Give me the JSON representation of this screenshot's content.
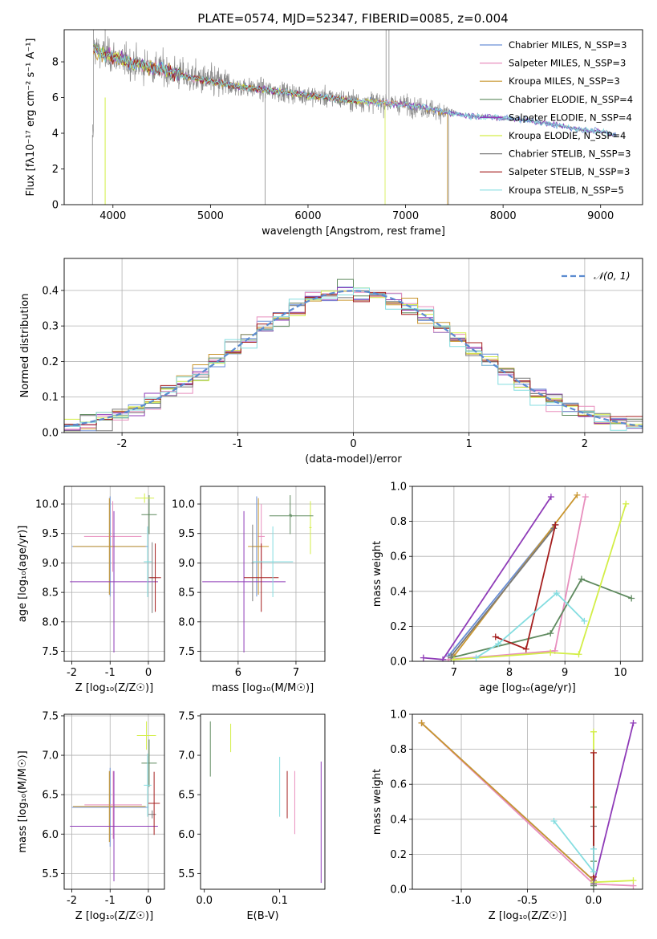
{
  "figure_title": "PLATE=0574, MJD=52347, FIBERID=0085, z=0.004",
  "series_colors": [
    "#6a8fd6",
    "#e88fbe",
    "#c9962f",
    "#5f8a5f",
    "#8f3cb8",
    "#d3ee47",
    "#7a7a7a",
    "#a51f1f",
    "#84dde0"
  ],
  "chart_data": [
    {
      "id": "spectrum",
      "type": "line",
      "xlabel": "wavelength [Angstrom, rest frame]",
      "ylabel": "Flux [fλ10⁻¹⁷ erg cm⁻² s⁻¹ A⁻¹]",
      "xlim": [
        3500,
        9430
      ],
      "ylim": [
        0,
        9.8
      ],
      "xticks": [
        4000,
        5000,
        6000,
        7000,
        8000,
        9000
      ],
      "yticks": [
        0,
        2,
        4,
        6,
        8
      ],
      "grid": false,
      "legend_position": "top-right",
      "legend": [
        "Chabrier MILES, N_SSP=3",
        "Salpeter MILES, N_SSP=3",
        "Kroupa MILES, N_SSP=3",
        "Chabrier ELODIE, N_SSP=4",
        "Salpeter ELODIE, N_SSP=4",
        "Kroupa ELODIE, N_SSP=4",
        "Chabrier STELIB, N_SSP=3",
        "Salpeter STELIB, N_SSP=3",
        "Kroupa STELIB, N_SSP=5"
      ],
      "continuum": {
        "x": [
          3800,
          3900,
          4000,
          4200,
          4500,
          4800,
          5000,
          5300,
          5600,
          5900,
          6200,
          6500,
          6800,
          7000,
          7300,
          7600,
          7900,
          8200,
          8500,
          8800,
          9000,
          9160
        ],
        "y": [
          8.8,
          8.4,
          8.3,
          7.9,
          7.6,
          7.1,
          6.9,
          6.6,
          6.4,
          6.2,
          6.0,
          5.8,
          5.7,
          5.6,
          5.3,
          5.0,
          4.9,
          4.75,
          4.5,
          4.2,
          4.1,
          3.9
        ]
      }
    },
    {
      "id": "residuals",
      "type": "histogram",
      "xlabel": "(data-model)/error",
      "ylabel": "Normed distribution",
      "xlim": [
        -2.5,
        2.5
      ],
      "ylim": [
        0,
        0.49
      ],
      "xticks": [
        -2,
        -1,
        0,
        1,
        2
      ],
      "yticks": [
        0.0,
        0.1,
        0.2,
        0.3,
        0.4
      ],
      "grid": true,
      "legend_position": "top-right",
      "reference_label": "𝒩(0, 1)",
      "bins": 36
    },
    {
      "id": "age_vs_Z",
      "type": "scatter",
      "xlabel": "Z [log₁₀(Z/Z☉)]",
      "ylabel": "age  [log₁₀(age/yr)]",
      "xlim": [
        -2.2,
        0.42
      ],
      "ylim": [
        7.33,
        10.3
      ],
      "xticks": [
        -2,
        -1,
        0
      ],
      "yticks": [
        7.5,
        8.0,
        8.5,
        9.0,
        9.5,
        10.0
      ],
      "grid": true,
      "points": [
        {
          "x": -1.0,
          "y": 9.28,
          "xerr": 1.0,
          "yerr": 0.85,
          "c": 0
        },
        {
          "x": -0.93,
          "y": 9.45,
          "xerr": 0.75,
          "yerr": 0.6,
          "c": 1
        },
        {
          "x": -1.02,
          "y": 9.28,
          "xerr": 0.95,
          "yerr": 0.82,
          "c": 2
        },
        {
          "x": 0.02,
          "y": 9.82,
          "xerr": 0.2,
          "yerr": 0.33,
          "c": 3
        },
        {
          "x": -0.9,
          "y": 8.68,
          "xerr": 1.15,
          "yerr": 1.2,
          "c": 4
        },
        {
          "x": -0.1,
          "y": 10.1,
          "xerr": 0.25,
          "yerr": 0.08,
          "c": 5
        },
        {
          "x": 0.1,
          "y": 8.75,
          "xerr": 0.1,
          "yerr": 0.6,
          "c": 6
        },
        {
          "x": 0.18,
          "y": 8.75,
          "xerr": 0.15,
          "yerr": 0.58,
          "c": 7
        },
        {
          "x": -0.02,
          "y": 9.02,
          "xerr": 0.1,
          "yerr": 0.6,
          "c": 8
        }
      ]
    },
    {
      "id": "age_vs_mass",
      "type": "scatter",
      "xlabel": "mass [log₁₀(M/M☉)]",
      "ylabel": "",
      "xlim": [
        5.35,
        7.5
      ],
      "ylim": [
        7.33,
        10.3
      ],
      "xticks": [
        6,
        7
      ],
      "yticks": [
        7.5,
        8.0,
        8.5,
        9.0,
        9.5,
        10.0
      ],
      "grid": true,
      "points": [
        {
          "x": 6.32,
          "y": 9.28,
          "xerr": 0.08,
          "yerr": 0.85,
          "c": 0
        },
        {
          "x": 6.4,
          "y": 9.45,
          "xerr": 0.06,
          "yerr": 0.55,
          "c": 1
        },
        {
          "x": 6.35,
          "y": 9.28,
          "xerr": 0.18,
          "yerr": 0.82,
          "c": 2
        },
        {
          "x": 6.9,
          "y": 9.82,
          "xerr": 0.02,
          "yerr": 0.33,
          "c": 3
        },
        {
          "x": 6.1,
          "y": 8.68,
          "xerr": 0.72,
          "yerr": 1.2,
          "c": 4
        },
        {
          "x": 7.25,
          "y": 9.6,
          "xerr": 0.02,
          "yerr": 0.45,
          "c": 5
        },
        {
          "x": 6.25,
          "y": 9.0,
          "xerr": 0.02,
          "yerr": 0.65,
          "c": 6
        },
        {
          "x": 6.4,
          "y": 8.75,
          "xerr": 0.3,
          "yerr": 0.58,
          "c": 7
        },
        {
          "x": 6.6,
          "y": 9.02,
          "xerr": 0.35,
          "yerr": 0.6,
          "c": 8
        },
        {
          "x": 6.92,
          "y": 9.8,
          "xerr": 0.38,
          "yerr": 0.02,
          "c": 3
        }
      ]
    },
    {
      "id": "weight_vs_age",
      "type": "line",
      "xlabel": "age  [log₁₀(age/yr)]",
      "ylabel": "mass weight",
      "xlim": [
        6.25,
        10.4
      ],
      "ylim": [
        0,
        1.0
      ],
      "xticks": [
        7,
        8,
        9,
        10
      ],
      "yticks": [
        0.0,
        0.2,
        0.4,
        0.6,
        0.8,
        1.0
      ],
      "grid": true,
      "series": [
        {
          "c": 0,
          "x": [
            6.9,
            8.82
          ],
          "y": [
            0.03,
            0.78
          ]
        },
        {
          "c": 1,
          "x": [
            6.9,
            8.82,
            9.37
          ],
          "y": [
            0.01,
            0.06,
            0.94
          ]
        },
        {
          "c": 2,
          "x": [
            7.0,
            9.22
          ],
          "y": [
            0.03,
            0.95
          ]
        },
        {
          "c": 3,
          "x": [
            6.95,
            8.74,
            9.3,
            10.2
          ],
          "y": [
            0.02,
            0.16,
            0.47,
            0.36
          ]
        },
        {
          "c": 4,
          "x": [
            6.45,
            6.8,
            8.75
          ],
          "y": [
            0.02,
            0.01,
            0.94
          ]
        },
        {
          "c": 5,
          "x": [
            7.0,
            8.74,
            9.25,
            10.1
          ],
          "y": [
            0.01,
            0.05,
            0.04,
            0.9
          ]
        },
        {
          "c": 6,
          "x": [
            6.95,
            8.8
          ],
          "y": [
            0.03,
            0.76
          ]
        },
        {
          "c": 7,
          "x": [
            7.75,
            8.3,
            8.83
          ],
          "y": [
            0.14,
            0.07,
            0.78
          ]
        },
        {
          "c": 8,
          "x": [
            7.4,
            7.8,
            8.85,
            9.35
          ],
          "y": [
            0.02,
            0.1,
            0.39,
            0.23
          ]
        }
      ]
    },
    {
      "id": "mass_vs_Z",
      "type": "scatter",
      "xlabel": "Z [log₁₀(Z/Z☉)]",
      "ylabel": "mass [log₁₀(M/M☉)]",
      "xlim": [
        -2.2,
        0.42
      ],
      "ylim": [
        5.3,
        7.52
      ],
      "xticks": [
        -2,
        -1,
        0
      ],
      "yticks": [
        5.5,
        6.0,
        6.5,
        7.0,
        7.5
      ],
      "grid": true,
      "points": [
        {
          "x": -1.0,
          "y": 6.34,
          "xerr": 1.0,
          "yerr": 0.5,
          "c": 0
        },
        {
          "x": -0.92,
          "y": 6.37,
          "xerr": 0.75,
          "yerr": 0.43,
          "c": 1
        },
        {
          "x": -1.02,
          "y": 6.35,
          "xerr": 0.95,
          "yerr": 0.45,
          "c": 2
        },
        {
          "x": 0.02,
          "y": 6.9,
          "xerr": 0.2,
          "yerr": 0.3,
          "c": 3
        },
        {
          "x": -0.9,
          "y": 6.1,
          "xerr": 1.15,
          "yerr": 0.7,
          "c": 4
        },
        {
          "x": -0.05,
          "y": 7.25,
          "xerr": 0.25,
          "yerr": 0.18,
          "c": 5
        },
        {
          "x": 0.1,
          "y": 6.25,
          "xerr": 0.1,
          "yerr": 0.05,
          "c": 6
        },
        {
          "x": 0.15,
          "y": 6.39,
          "xerr": 0.15,
          "yerr": 0.4,
          "c": 7
        },
        {
          "x": -0.02,
          "y": 6.62,
          "xerr": 0.1,
          "yerr": 0.4,
          "c": 8
        }
      ]
    },
    {
      "id": "mass_vs_ebv",
      "type": "scatter",
      "xlabel": "E(B-V)",
      "ylabel": "",
      "xlim": [
        -0.005,
        0.16
      ],
      "ylim": [
        5.3,
        7.52
      ],
      "xticks": [
        0.0,
        0.1
      ],
      "yticks": [
        5.5,
        6.0,
        6.5,
        7.0,
        7.5
      ],
      "grid": false,
      "points": [
        {
          "x": 0.008,
          "y": 7.08,
          "xerr": 0,
          "yerr": 0.35,
          "c": 3
        },
        {
          "x": 0.035,
          "y": 7.22,
          "xerr": 0,
          "yerr": 0.18,
          "c": 5
        },
        {
          "x": 0.1,
          "y": 6.6,
          "xerr": 0,
          "yerr": 0.38,
          "c": 8
        },
        {
          "x": 0.11,
          "y": 6.5,
          "xerr": 0,
          "yerr": 0.3,
          "c": 7
        },
        {
          "x": 0.12,
          "y": 6.4,
          "xerr": 0,
          "yerr": 0.4,
          "c": 1
        },
        {
          "x": 0.155,
          "y": 6.15,
          "xerr": 0,
          "yerr": 0.77,
          "c": 4
        }
      ]
    },
    {
      "id": "weight_vs_Z",
      "type": "line",
      "xlabel": "Z [log₁₀(Z/Z☉)]",
      "ylabel": "mass weight",
      "xlim": [
        -1.37,
        0.37
      ],
      "ylim": [
        0,
        1.0
      ],
      "xticks": [
        -1.0,
        -0.5,
        0.0
      ],
      "yticks": [
        0.0,
        0.2,
        0.4,
        0.6,
        0.8,
        1.0
      ],
      "grid": true,
      "series": [
        {
          "c": 0,
          "x": [
            -1.3,
            0.0
          ],
          "y": [
            0.95,
            0.05
          ]
        },
        {
          "c": 1,
          "x": [
            -1.3,
            0.0,
            0.3
          ],
          "y": [
            0.95,
            0.03,
            0.02
          ]
        },
        {
          "c": 2,
          "x": [
            -1.3,
            0.0
          ],
          "y": [
            0.95,
            0.05
          ]
        },
        {
          "c": 3,
          "x": [
            0.0,
            0.0,
            0.0
          ],
          "y": [
            0.02,
            0.16,
            0.47
          ]
        },
        {
          "c": 4,
          "x": [
            0.0,
            0.3
          ],
          "y": [
            0.03,
            0.95
          ]
        },
        {
          "c": 5,
          "x": [
            0.0,
            0.0,
            0.3
          ],
          "y": [
            0.9,
            0.04,
            0.05
          ]
        },
        {
          "c": 6,
          "x": [
            0.0,
            0.0
          ],
          "y": [
            0.03,
            0.36
          ]
        },
        {
          "c": 7,
          "x": [
            0.0,
            0.0
          ],
          "y": [
            0.07,
            0.78
          ]
        },
        {
          "c": 8,
          "x": [
            -0.3,
            0.0,
            0.0
          ],
          "y": [
            0.39,
            0.1,
            0.23
          ]
        }
      ]
    }
  ]
}
